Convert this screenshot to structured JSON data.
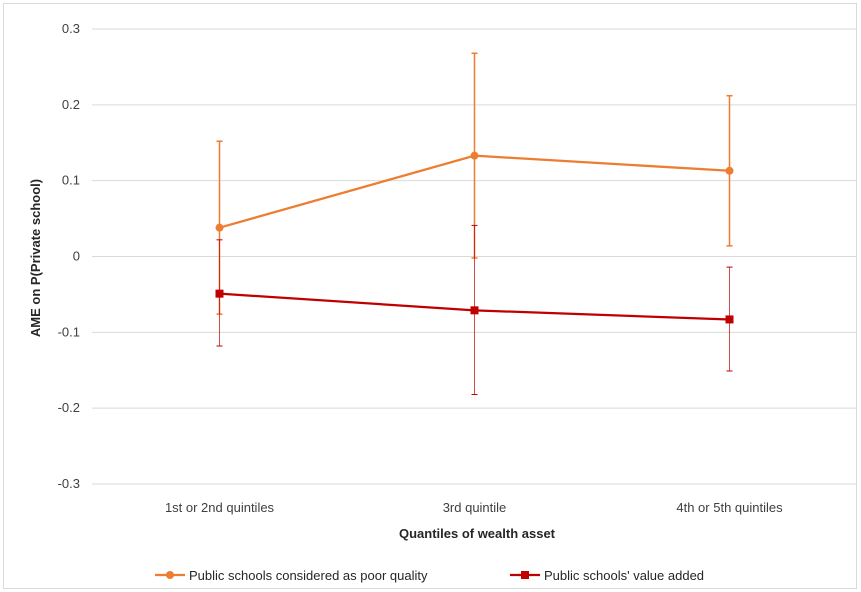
{
  "chart_data": {
    "type": "line",
    "title": "",
    "xlabel": "Quantiles of wealth asset",
    "ylabel": "AME on P(Private school)",
    "categories": [
      "1st or 2nd quintiles",
      "3rd quintile",
      "4th or 5th quintiles"
    ],
    "ylim": [
      -0.3,
      0.3
    ],
    "yticks": [
      0.3,
      0.2,
      0.1,
      0,
      -0.1,
      -0.2,
      -0.3
    ],
    "ytick_labels": [
      "0.3",
      "0.2",
      "0.1",
      "0",
      "-0.1",
      "-0.2",
      "-0.3"
    ],
    "grid": "horizontal",
    "legend_position": "bottom",
    "series": [
      {
        "name": "Public schools considered as poor quality",
        "color": "#ed7d31",
        "marker": "circle",
        "values": [
          0.038,
          0.133,
          0.113
        ],
        "error_low": [
          -0.076,
          -0.002,
          0.014
        ],
        "error_high": [
          0.152,
          0.268,
          0.212
        ]
      },
      {
        "name": "Public schools' value added",
        "color": "#c00000",
        "marker": "square",
        "values": [
          -0.049,
          -0.071,
          -0.083
        ],
        "error_low": [
          -0.118,
          -0.182,
          -0.151
        ],
        "error_high": [
          0.022,
          0.041,
          -0.014
        ]
      }
    ]
  }
}
